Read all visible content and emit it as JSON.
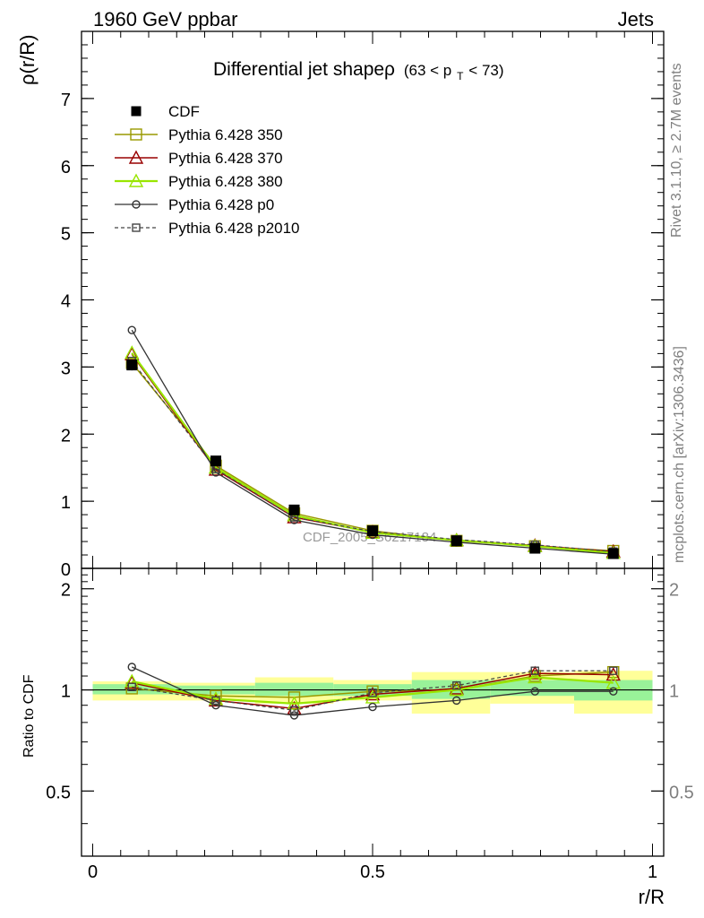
{
  "header": {
    "left": "1960 GeV ppbar",
    "right": "Jets"
  },
  "side_text": {
    "rivet": "Rivet 3.1.10, ≥ 2.7M events",
    "mcplots": "mcplots.cern.ch [arXiv:1306.3436]"
  },
  "watermark": "CDF_2005_S6217184",
  "colors": {
    "cdf": "#000000",
    "p350": "#999900",
    "p370": "#990000",
    "p380": "#99e600",
    "p0": "#333333",
    "p2010": "#444444",
    "band_inner": "#99f299",
    "band_outer": "#ffff99"
  },
  "chart_data": [
    {
      "type": "line",
      "title": "Differential jet shapeρ",
      "title_sub": "(63 < p",
      "title_sub_T": "T",
      "title_sub_end": " < 73)",
      "ylabel": "ρ(r/R)",
      "xlabel": "",
      "xlim": [
        -0.02,
        1.02
      ],
      "ylim": [
        0,
        8
      ],
      "y_ticks": [
        0,
        1,
        2,
        3,
        4,
        5,
        6,
        7
      ],
      "y_tick_labels": [
        "0",
        "1",
        "2",
        "3",
        "4",
        "5",
        "6",
        "7"
      ],
      "legend_position": "top-left",
      "x": [
        0.07,
        0.22,
        0.36,
        0.5,
        0.65,
        0.79,
        0.93
      ],
      "series": [
        {
          "name": "CDF",
          "style": "cdf",
          "values": [
            3.03,
            1.6,
            0.87,
            0.56,
            0.41,
            0.3,
            0.22
          ],
          "errors": [
            0.08,
            0.05,
            0.03,
            0.02,
            0.02,
            0.02,
            0.02
          ]
        },
        {
          "name": "Pythia 6.428 350",
          "style": "p350",
          "values": [
            3.06,
            1.53,
            0.82,
            0.56,
            0.41,
            0.33,
            0.26
          ]
        },
        {
          "name": "Pythia 6.428 370",
          "style": "p370",
          "values": [
            3.19,
            1.47,
            0.76,
            0.54,
            0.42,
            0.34,
            0.25
          ]
        },
        {
          "name": "Pythia 6.428 380",
          "style": "p380",
          "values": [
            3.21,
            1.5,
            0.79,
            0.53,
            0.42,
            0.33,
            0.23
          ]
        },
        {
          "name": "Pythia 6.428 p0",
          "style": "p0",
          "values": [
            3.55,
            1.43,
            0.72,
            0.5,
            0.39,
            0.3,
            0.21
          ]
        },
        {
          "name": "Pythia 6.428 p2010",
          "style": "p2010",
          "values": [
            3.09,
            1.48,
            0.76,
            0.55,
            0.43,
            0.35,
            0.25
          ]
        }
      ]
    },
    {
      "type": "line",
      "ylabel": "Ratio to CDF",
      "xlabel": "r/R",
      "xlim": [
        -0.02,
        1.02
      ],
      "ylim": [
        0.32,
        2.3
      ],
      "y_ticks": [
        0.5,
        1,
        2
      ],
      "y_tick_labels": [
        "0.5",
        "1",
        "2"
      ],
      "x_ticks": [
        0,
        0.5,
        1
      ],
      "x_tick_labels": [
        "0",
        "0.5",
        "1"
      ],
      "reference_line": 1,
      "bins": [
        [
          0,
          0.14
        ],
        [
          0.14,
          0.29
        ],
        [
          0.29,
          0.43
        ],
        [
          0.43,
          0.57
        ],
        [
          0.57,
          0.71
        ],
        [
          0.71,
          0.86
        ],
        [
          0.86,
          1.0
        ]
      ],
      "band_inner": [
        [
          0.97,
          1.04
        ],
        [
          0.97,
          1.03
        ],
        [
          0.96,
          1.05
        ],
        [
          0.96,
          1.04
        ],
        [
          0.94,
          1.07
        ],
        [
          0.96,
          1.07
        ],
        [
          0.93,
          1.07
        ]
      ],
      "band_outer": [
        [
          0.93,
          1.06
        ],
        [
          0.93,
          1.05
        ],
        [
          0.91,
          1.09
        ],
        [
          0.93,
          1.07
        ],
        [
          0.85,
          1.13
        ],
        [
          0.91,
          1.13
        ],
        [
          0.85,
          1.14
        ]
      ],
      "x": [
        0.07,
        0.22,
        0.36,
        0.5,
        0.65,
        0.79,
        0.93
      ],
      "series": [
        {
          "name": "Pythia 6.428 350",
          "style": "p350",
          "values": [
            1.01,
            0.96,
            0.95,
            0.99,
            1.0,
            1.1,
            1.13
          ]
        },
        {
          "name": "Pythia 6.428 370",
          "style": "p370",
          "values": [
            1.05,
            0.93,
            0.88,
            0.97,
            1.01,
            1.12,
            1.11
          ]
        },
        {
          "name": "Pythia 6.428 380",
          "style": "p380",
          "values": [
            1.06,
            0.94,
            0.91,
            0.95,
            1.0,
            1.09,
            1.05
          ]
        },
        {
          "name": "Pythia 6.428 p0",
          "style": "p0",
          "values": [
            1.17,
            0.9,
            0.84,
            0.89,
            0.93,
            0.99,
            0.99
          ]
        },
        {
          "name": "Pythia 6.428 p2010",
          "style": "p2010",
          "values": [
            1.02,
            0.93,
            0.87,
            0.98,
            1.03,
            1.14,
            1.14
          ]
        }
      ]
    }
  ]
}
